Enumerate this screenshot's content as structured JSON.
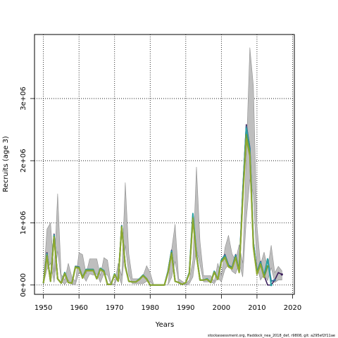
{
  "chart_data": {
    "type": "line",
    "title": "",
    "xlabel": "Years",
    "ylabel": "Recruits (age 3)",
    "xlim": [
      1947.5,
      2020.5
    ],
    "ylim": [
      -150000,
      4030000
    ],
    "x_ticks": [
      1950,
      1960,
      1970,
      1980,
      1990,
      2000,
      2010,
      2020
    ],
    "y_ticks": [
      0,
      1000000,
      2000000,
      3000000
    ],
    "y_tick_labels": [
      "0e+00",
      "1e+06",
      "2e+06",
      "3e+06"
    ],
    "grid": true,
    "grid_style": "dotted",
    "colors": {
      "band": "#bebebe",
      "band_edge": "#8f8f8f",
      "series_purple": "#3b1f5c",
      "series_blue": "#3a6f9a",
      "series_teal": "#2aa1a3",
      "series_green": "#6a9c3a",
      "series_olive": "#8fa830"
    },
    "footnote": "stockassessment.org, Haddock_nea_2018_def, r9808, git: a295ef2f11ae",
    "band": {
      "x": [
        1950,
        1951,
        1952,
        1953,
        1954,
        1955,
        1956,
        1957,
        1958,
        1959,
        1960,
        1961,
        1962,
        1963,
        1964,
        1965,
        1966,
        1967,
        1968,
        1969,
        1970,
        1971,
        1972,
        1973,
        1974,
        1975,
        1976,
        1977,
        1978,
        1979,
        1980,
        1981,
        1982,
        1983,
        1984,
        1985,
        1986,
        1987,
        1988,
        1989,
        1990,
        1991,
        1992,
        1993,
        1994,
        1995,
        1996,
        1997,
        1998,
        1999,
        2000,
        2001,
        2002,
        2003,
        2004,
        2005,
        2006,
        2007,
        2008,
        2009,
        2010,
        2011,
        2012,
        2013,
        2014,
        2015,
        2016,
        2017
      ],
      "lower": [
        15000,
        250000,
        350000,
        40000,
        550000,
        60000,
        10000,
        80000,
        10000,
        10000,
        200000,
        160000,
        60000,
        180000,
        160000,
        180000,
        40000,
        180000,
        160000,
        0,
        0,
        160000,
        10000,
        640000,
        160000,
        20000,
        20000,
        20000,
        20000,
        60000,
        50000,
        0,
        0,
        0,
        0,
        0,
        120000,
        380000,
        20000,
        10000,
        0,
        20000,
        130000,
        580000,
        320000,
        50000,
        50000,
        50000,
        20000,
        120000,
        50000,
        250000,
        330000,
        220000,
        180000,
        350000,
        130000,
        1050000,
        1700000,
        1450000,
        300000,
        80000,
        170000,
        70000,
        280000,
        40000,
        80000,
        80000
      ],
      "upper": [
        60000,
        900000,
        1000000,
        200000,
        1470000,
        170000,
        80000,
        350000,
        130000,
        60000,
        520000,
        490000,
        180000,
        420000,
        420000,
        420000,
        150000,
        440000,
        400000,
        20000,
        20000,
        350000,
        150000,
        1650000,
        500000,
        100000,
        100000,
        100000,
        150000,
        310000,
        200000,
        0,
        0,
        0,
        0,
        0,
        560000,
        980000,
        100000,
        60000,
        20000,
        80000,
        400000,
        1900000,
        700000,
        150000,
        150000,
        150000,
        60000,
        350000,
        150000,
        600000,
        800000,
        500000,
        400000,
        650000,
        350000,
        2100000,
        3820000,
        3200000,
        950000,
        330000,
        530000,
        270000,
        640000,
        200000,
        300000,
        230000
      ]
    },
    "series": [
      {
        "color_key": "series_purple",
        "x": [
          1950,
          1951,
          1952,
          1953,
          1954,
          1955,
          1956,
          1957,
          1958,
          1959,
          1960,
          1961,
          1962,
          1963,
          1964,
          1965,
          1966,
          1967,
          1968,
          1969,
          1970,
          1971,
          1972,
          1973,
          1974,
          1975,
          1976,
          1977,
          1978,
          1979,
          1980,
          1981,
          1982,
          1983,
          1984,
          1985,
          1986,
          1987,
          1988,
          1989,
          1990,
          1991,
          1992,
          1993,
          1994,
          1995,
          1996,
          1997,
          1998,
          1999,
          2000,
          2001,
          2002,
          2003,
          2004,
          2005,
          2006,
          2007,
          2008,
          2009,
          2010,
          2011,
          2012,
          2013,
          2014,
          2015,
          2016,
          2017
        ],
        "y": [
          30000,
          520000,
          60000,
          820000,
          100000,
          30000,
          200000,
          40000,
          30000,
          300000,
          290000,
          120000,
          250000,
          250000,
          250000,
          100000,
          270000,
          230000,
          10000,
          10000,
          180000,
          60000,
          960000,
          310000,
          60000,
          50000,
          50000,
          100000,
          160000,
          100000,
          0,
          0,
          0,
          0,
          0,
          220000,
          560000,
          60000,
          40000,
          10000,
          40000,
          200000,
          1100000,
          500000,
          80000,
          80000,
          100000,
          40000,
          220000,
          90000,
          400000,
          490000,
          320000,
          280000,
          490000,
          220000,
          1500000,
          2580000,
          2200000,
          700000,
          200000,
          380000,
          150000,
          0,
          0,
          80000,
          200000,
          170000
        ]
      },
      {
        "color_key": "series_blue",
        "x": [
          1950,
          1951,
          1952,
          1953,
          1954,
          1955,
          1956,
          1957,
          1958,
          1959,
          1960,
          1961,
          1962,
          1963,
          1964,
          1965,
          1966,
          1967,
          1968,
          1969,
          1970,
          1971,
          1972,
          1973,
          1974,
          1975,
          1976,
          1977,
          1978,
          1979,
          1980,
          1981,
          1982,
          1983,
          1984,
          1985,
          1986,
          1987,
          1988,
          1989,
          1990,
          1991,
          1992,
          1993,
          1994,
          1995,
          1996,
          1997,
          1998,
          1999,
          2000,
          2001,
          2002,
          2003,
          2004,
          2005,
          2006,
          2007,
          2008,
          2009,
          2010,
          2011,
          2012,
          2013,
          2014,
          2015
        ],
        "y": [
          30000,
          500000,
          60000,
          800000,
          100000,
          30000,
          200000,
          40000,
          30000,
          300000,
          290000,
          120000,
          250000,
          250000,
          250000,
          100000,
          270000,
          230000,
          10000,
          10000,
          180000,
          60000,
          950000,
          310000,
          60000,
          50000,
          50000,
          100000,
          160000,
          100000,
          0,
          0,
          0,
          0,
          0,
          220000,
          550000,
          60000,
          40000,
          10000,
          40000,
          200000,
          1120000,
          500000,
          80000,
          80000,
          100000,
          40000,
          220000,
          90000,
          400000,
          480000,
          320000,
          280000,
          480000,
          220000,
          1480000,
          2550000,
          2200000,
          680000,
          200000,
          370000,
          150000,
          420000,
          60000,
          80000
        ]
      },
      {
        "color_key": "series_teal",
        "x": [
          1950,
          1951,
          1952,
          1953,
          1954,
          1955,
          1956,
          1957,
          1958,
          1959,
          1960,
          1961,
          1962,
          1963,
          1964,
          1965,
          1966,
          1967,
          1968,
          1969,
          1970,
          1971,
          1972,
          1973,
          1974,
          1975,
          1976,
          1977,
          1978,
          1979,
          1980,
          1981,
          1982,
          1983,
          1984,
          1985,
          1986,
          1987,
          1988,
          1989,
          1990,
          1991,
          1992,
          1993,
          1994,
          1995,
          1996,
          1997,
          1998,
          1999,
          2000,
          2001,
          2002,
          2003,
          2004,
          2005,
          2006,
          2007,
          2008,
          2009,
          2010,
          2011,
          2012,
          2013,
          2014
        ],
        "y": [
          30000,
          500000,
          60000,
          800000,
          100000,
          30000,
          200000,
          40000,
          30000,
          290000,
          280000,
          120000,
          250000,
          250000,
          250000,
          100000,
          270000,
          230000,
          10000,
          10000,
          180000,
          60000,
          950000,
          300000,
          60000,
          50000,
          50000,
          100000,
          160000,
          100000,
          0,
          0,
          0,
          0,
          0,
          210000,
          540000,
          60000,
          40000,
          10000,
          40000,
          200000,
          1150000,
          500000,
          80000,
          80000,
          100000,
          40000,
          220000,
          90000,
          400000,
          470000,
          310000,
          270000,
          470000,
          210000,
          1450000,
          2520000,
          2150000,
          660000,
          190000,
          360000,
          140000,
          420000,
          0
        ]
      },
      {
        "color_key": "series_green",
        "x": [
          1950,
          1951,
          1952,
          1953,
          1954,
          1955,
          1956,
          1957,
          1958,
          1959,
          1960,
          1961,
          1962,
          1963,
          1964,
          1965,
          1966,
          1967,
          1968,
          1969,
          1970,
          1971,
          1972,
          1973,
          1974,
          1975,
          1976,
          1977,
          1978,
          1979,
          1980,
          1981,
          1982,
          1983,
          1984,
          1985,
          1986,
          1987,
          1988,
          1989,
          1990,
          1991,
          1992,
          1993,
          1994,
          1995,
          1996,
          1997,
          1998,
          1999,
          2000,
          2001,
          2002,
          2003,
          2004,
          2005,
          2006,
          2007,
          2008,
          2009,
          2010,
          2011,
          2012,
          2013
        ],
        "y": [
          30000,
          480000,
          60000,
          780000,
          100000,
          30000,
          190000,
          40000,
          30000,
          290000,
          280000,
          120000,
          240000,
          240000,
          240000,
          100000,
          260000,
          220000,
          10000,
          10000,
          170000,
          60000,
          940000,
          300000,
          60000,
          50000,
          50000,
          90000,
          150000,
          100000,
          0,
          0,
          0,
          0,
          0,
          200000,
          520000,
          60000,
          40000,
          10000,
          40000,
          190000,
          1080000,
          480000,
          80000,
          80000,
          90000,
          40000,
          210000,
          90000,
          380000,
          450000,
          300000,
          270000,
          450000,
          210000,
          1400000,
          2420000,
          2120000,
          620000,
          180000,
          340000,
          130000,
          300000
        ]
      },
      {
        "color_key": "series_olive",
        "x": [
          1950,
          1951,
          1952,
          1953,
          1954,
          1955,
          1956,
          1957,
          1958,
          1959,
          1960,
          1961,
          1962,
          1963,
          1964,
          1965,
          1966,
          1967,
          1968,
          1969,
          1970,
          1971,
          1972,
          1973,
          1974,
          1975,
          1976,
          1977,
          1978,
          1979,
          1980,
          1981,
          1982,
          1983,
          1984,
          1985,
          1986,
          1987,
          1988,
          1989,
          1990,
          1991,
          1992,
          1993,
          1994,
          1995,
          1996,
          1997,
          1998,
          1999,
          2000,
          2001,
          2002,
          2003,
          2004,
          2005,
          2006,
          2007,
          2008,
          2009,
          2010,
          2011,
          2012
        ],
        "y": [
          30000,
          460000,
          60000,
          760000,
          100000,
          30000,
          180000,
          40000,
          30000,
          280000,
          270000,
          110000,
          230000,
          230000,
          230000,
          100000,
          250000,
          210000,
          10000,
          10000,
          170000,
          60000,
          930000,
          290000,
          60000,
          50000,
          50000,
          90000,
          150000,
          90000,
          0,
          0,
          0,
          0,
          0,
          190000,
          500000,
          60000,
          40000,
          10000,
          40000,
          180000,
          1050000,
          470000,
          80000,
          80000,
          90000,
          40000,
          200000,
          90000,
          370000,
          440000,
          290000,
          260000,
          440000,
          200000,
          1360000,
          2350000,
          2080000,
          600000,
          170000,
          330000,
          130000
        ]
      }
    ]
  }
}
